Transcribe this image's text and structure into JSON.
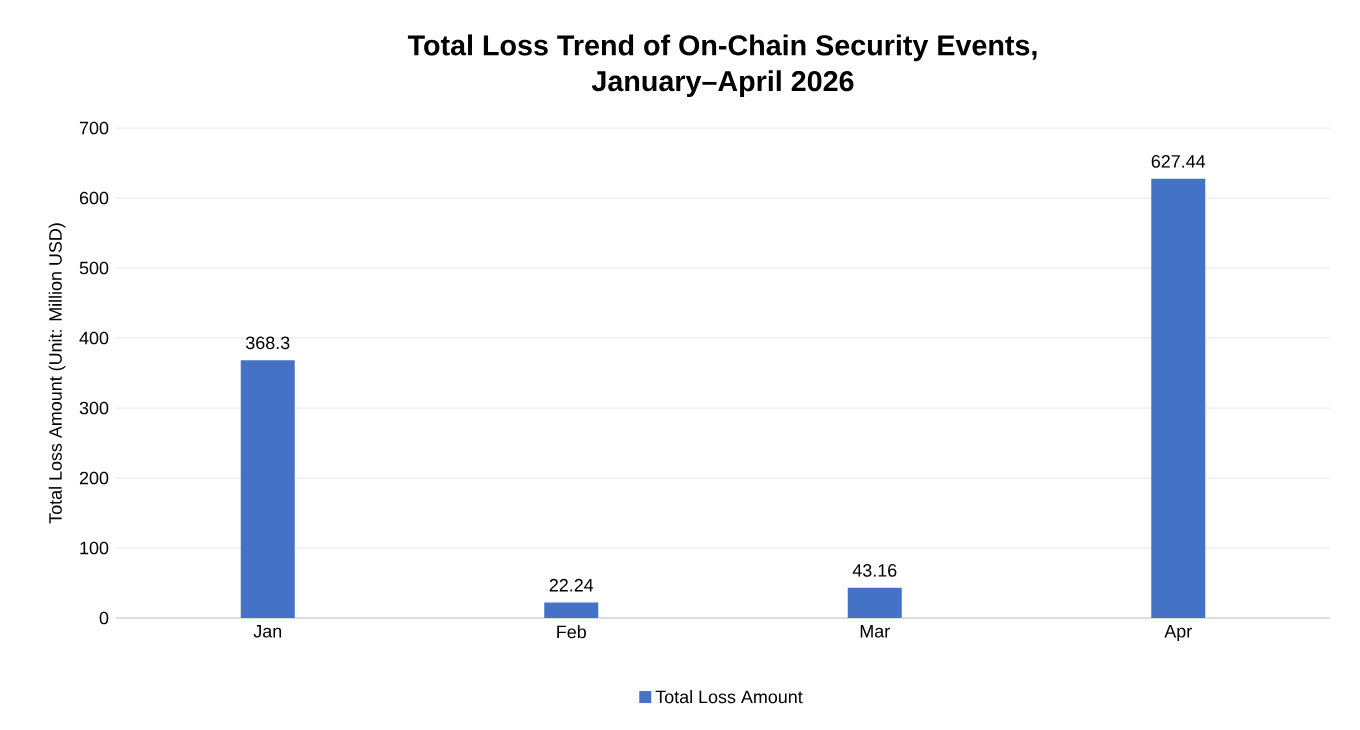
{
  "chart_data": {
    "type": "bar",
    "title": "Total Loss Trend of On-Chain Security Events,\nJanuary–April 2026",
    "ylabel": "Total Loss Amount (Unit: Million USD)",
    "categories": [
      "Jan",
      "Feb",
      "Mar",
      "Apr"
    ],
    "series": [
      {
        "name": "Total Loss Amount",
        "color": "#4472c4",
        "values": [
          368.3,
          22.24,
          43.16,
          627.44
        ]
      }
    ],
    "ylim": [
      0,
      700
    ],
    "yticks": [
      0,
      100,
      200,
      300,
      400,
      500,
      600,
      700
    ],
    "grid": "y",
    "legend": "bottom",
    "data_labels": true
  }
}
